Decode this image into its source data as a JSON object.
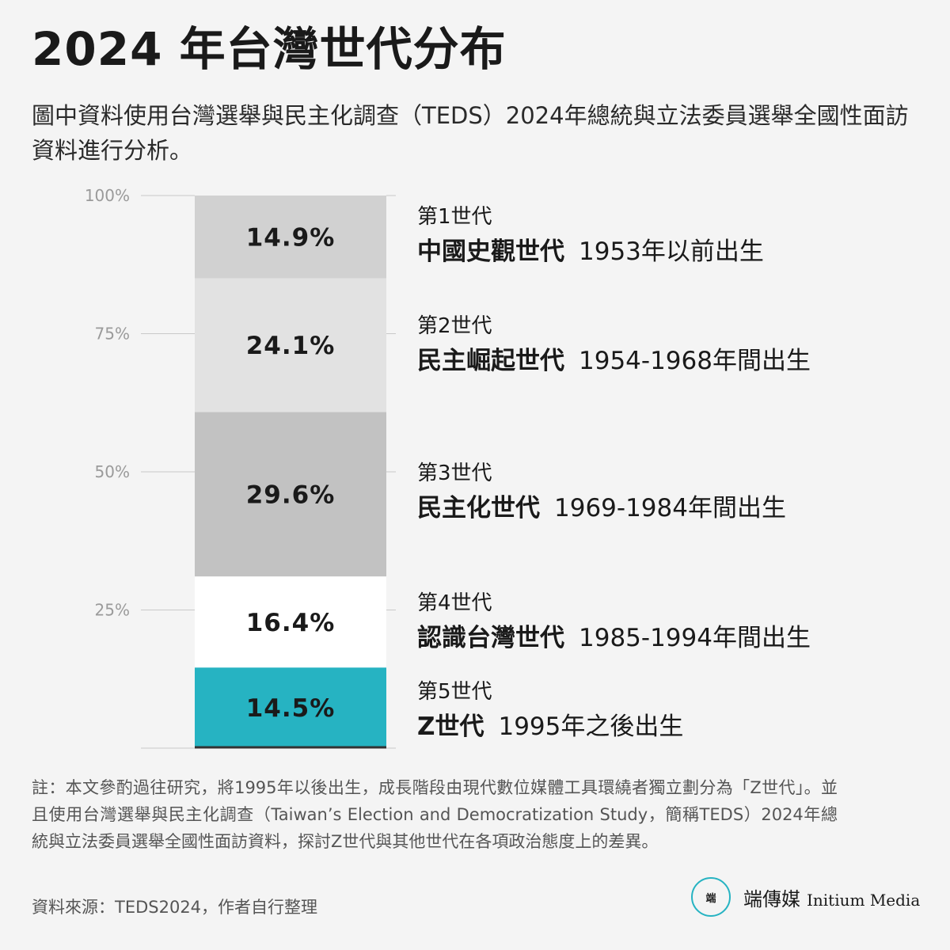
{
  "title": "2024 年台灣世代分布",
  "subtitle": "圖中資料使用台灣選舉與民主化調查（TEDS）2024年總統與立法委員選舉全國性面訪資料進行分析。",
  "chart_data": {
    "type": "bar",
    "stacked": true,
    "ylim": [
      0,
      100
    ],
    "yticks": [
      "100%",
      "75%",
      "50%",
      "25%"
    ],
    "ytick_values": [
      100,
      75,
      50,
      25
    ],
    "series": [
      {
        "label": "第1世代",
        "name": "中國史觀世代",
        "years": "1953年以前出生",
        "value": 14.9,
        "value_label": "14.9%",
        "color": "#d1d1d1"
      },
      {
        "label": "第2世代",
        "name": "民主崛起世代",
        "years": "1954-1968年間出生",
        "value": 24.1,
        "value_label": "24.1%",
        "color": "#e2e2e2"
      },
      {
        "label": "第3世代",
        "name": "民主化世代",
        "years": "1969-1984年間出生",
        "value": 29.6,
        "value_label": "29.6%",
        "color": "#c2c2c2"
      },
      {
        "label": "第4世代",
        "name": "認識台灣世代",
        "years": "1985-1994年間出生",
        "value": 16.4,
        "value_label": "16.4%",
        "color": "#ffffff"
      },
      {
        "label": "第5世代",
        "name": "Z世代",
        "years": "1995年之後出生",
        "value": 14.5,
        "value_label": "14.5%",
        "color": "#26b3c2"
      }
    ]
  },
  "note": "註：本文參酌過往研究，將1995年以後出生，成長階段由現代數位媒體工具環繞者獨立劃分為「Z世代」。並且使用台灣選舉與民主化調查（Taiwan’s Election and Democratization Study，簡稱TEDS）2024年總統與立法委員選舉全國性面訪資料，探討Z世代與其他世代在各項政治態度上的差異。",
  "source": "資料來源：TEDS2024，作者自行整理",
  "brand": {
    "logo_text": "端",
    "name_zh": "端傳媒",
    "name_en": "Initium Media",
    "accent": "#26b3c2"
  }
}
